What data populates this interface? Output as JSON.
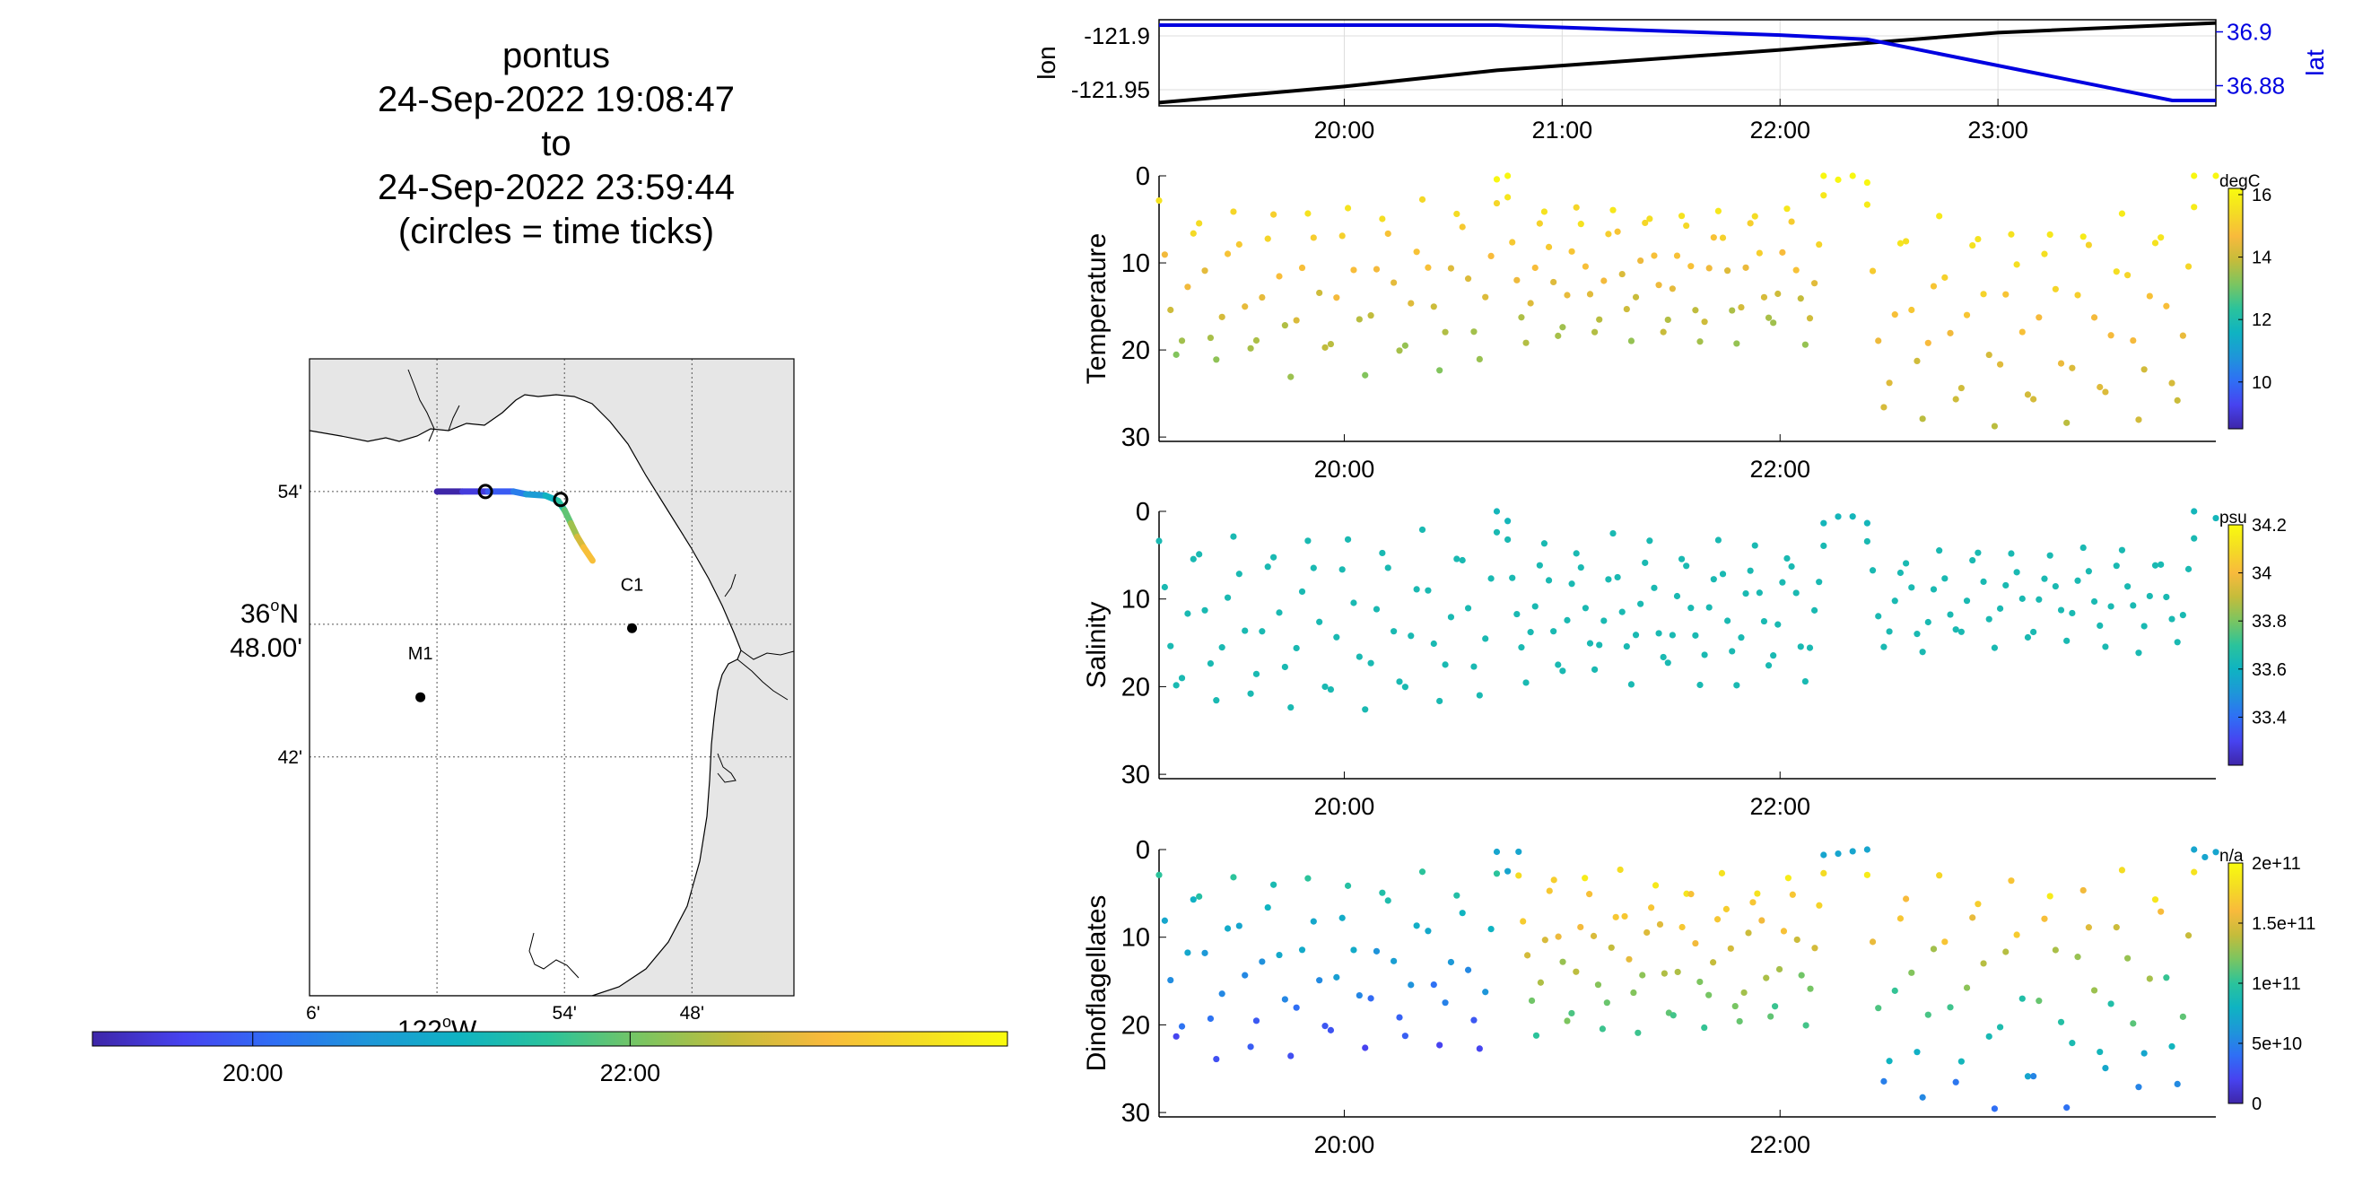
{
  "title": {
    "lines": [
      "pontus",
      "24-Sep-2022 19:08:47",
      "to",
      "24-Sep-2022 23:59:44",
      "(circles = time ticks)"
    ]
  },
  "colors": {
    "lon_line": "#000000",
    "lat_line": "#0000e0",
    "land": "#e6e6e6",
    "grid": "#bdbdbd",
    "parula_stops": [
      "#3e26a8",
      "#4743f0",
      "#2f6ff5",
      "#1e96d9",
      "#0fb3c2",
      "#2bc39b",
      "#7ac561",
      "#c4bc3b",
      "#f8ba3c",
      "#f4dc24",
      "#f9fb0e"
    ]
  },
  "chart_data": [
    {
      "type": "map",
      "name": "track-map",
      "x_ticks": [
        "6'",
        "54'",
        "48'"
      ],
      "x_tick_values": [
        -122.1,
        -121.9,
        -121.8
      ],
      "x_axis_label_deg": "122",
      "x_axis_label_suffix": "W",
      "y_ticks": [
        "54'",
        "42'"
      ],
      "y_tick_values": [
        36.9,
        36.7
      ],
      "y_axis_label_deg": "36",
      "y_axis_label_suffix": "N",
      "y_axis_label_min": "48.00'",
      "xlim": [
        -122.1,
        -121.72
      ],
      "ylim": [
        36.52,
        37.0
      ],
      "stations": [
        {
          "label": "C1",
          "lon": -121.847,
          "lat": 36.797
        },
        {
          "label": "M1",
          "lon": -122.013,
          "lat": 36.745
        }
      ],
      "track": {
        "lon": [
          -122.0,
          -121.98,
          -121.96,
          -121.94,
          -121.93,
          -121.915,
          -121.905,
          -121.9,
          -121.895,
          -121.89,
          -121.885,
          -121.878
        ],
        "lat": [
          36.9,
          36.9,
          36.9,
          36.9,
          36.898,
          36.897,
          36.893,
          36.886,
          36.876,
          36.866,
          36.858,
          36.848
        ],
        "time": [
          19.15,
          19.5,
          19.9,
          20.3,
          20.7,
          21.1,
          21.5,
          21.9,
          22.3,
          22.7,
          23.1,
          23.99
        ]
      },
      "time_ticks": [
        {
          "lon": -121.962,
          "lat": 36.9
        },
        {
          "lon": -121.903,
          "lat": 36.894
        }
      ]
    },
    {
      "type": "colorbar",
      "name": "time-colorbar",
      "range": [
        19.15,
        24.0
      ],
      "ticks": [
        20,
        22
      ],
      "tick_labels": [
        "20:00",
        "22:00"
      ]
    },
    {
      "type": "line",
      "name": "lon-lat-chart",
      "xlim": [
        19.15,
        24.0
      ],
      "x_ticks": [
        20,
        21,
        22,
        23
      ],
      "x_tick_labels": [
        "20:00",
        "21:00",
        "22:00",
        "23:00"
      ],
      "ylabel_left": "lon",
      "ylabel_right": "lat",
      "ylim_left": [
        -121.965,
        -121.885
      ],
      "y_ticks_left": [
        -121.9,
        -121.95
      ],
      "y_tick_labels_left": [
        "-121.9",
        "-121.95"
      ],
      "ylim_right": [
        36.8725,
        36.9045
      ],
      "y_ticks_right": [
        36.9,
        36.88
      ],
      "y_tick_labels_right": [
        "36.9",
        "36.88"
      ],
      "series": [
        {
          "axis": "left",
          "x": [
            19.15,
            20.0,
            20.7,
            22.0,
            23.0,
            24.0
          ],
          "y": [
            -121.962,
            -121.947,
            -121.932,
            -121.913,
            -121.897,
            -121.888
          ]
        },
        {
          "axis": "right",
          "x": [
            19.15,
            20.7,
            22.0,
            22.4,
            23.8,
            24.0
          ],
          "y": [
            36.9025,
            36.9025,
            36.8988,
            36.8972,
            36.8745,
            36.8745
          ]
        }
      ]
    },
    {
      "type": "scatter",
      "name": "temperature-chart",
      "ylabel": "Temperature",
      "unit_label": "degC",
      "xlim": [
        19.15,
        24.0
      ],
      "ylim": [
        0,
        30.5
      ],
      "y_ticks": [
        0,
        10,
        20,
        30
      ],
      "x_ticks": [
        20,
        22
      ],
      "x_tick_labels": [
        "20:00",
        "22:00"
      ],
      "color_range": [
        8.5,
        16.2
      ],
      "cbar_ticks": [
        10,
        12,
        14,
        16
      ],
      "cbar_tick_labels": [
        "10",
        "12",
        "14",
        "16"
      ],
      "profiles": [
        {
          "t0": 19.15,
          "t1": 20.7,
          "d_shallow": 2.5,
          "d_deep": 23.0,
          "n": 60,
          "v_shallow": 15.6,
          "v_deep": 13.2
        },
        {
          "t0": 20.7,
          "t1": 20.75,
          "d_shallow": 0.2,
          "d_deep": 0.5,
          "n": 2,
          "v_shallow": 16.1,
          "v_deep": 16.0
        },
        {
          "t0": 20.75,
          "t1": 22.2,
          "d_shallow": 3.0,
          "d_deep": 19.5,
          "n": 70,
          "v_shallow": 15.7,
          "v_deep": 13.4
        },
        {
          "t0": 22.2,
          "t1": 22.4,
          "d_shallow": 0.5,
          "d_deep": 2.0,
          "n": 4,
          "v_shallow": 16.1,
          "v_deep": 16.0
        },
        {
          "t0": 22.4,
          "t1": 23.9,
          "d_shallow": 4.0,
          "d_deep": 28.5,
          "n": 60,
          "v_shallow": 15.8,
          "v_deep": 13.8
        },
        {
          "t0": 23.9,
          "t1": 24.0,
          "d_shallow": 0.0,
          "d_deep": 0.3,
          "n": 2,
          "v_shallow": 16.1,
          "v_deep": 16.0
        }
      ]
    },
    {
      "type": "scatter",
      "name": "salinity-chart",
      "ylabel": "Salinity",
      "unit_label": "psu",
      "xlim": [
        19.15,
        24.0
      ],
      "ylim": [
        0,
        30.5
      ],
      "y_ticks": [
        0,
        10,
        20,
        30
      ],
      "x_ticks": [
        20,
        22
      ],
      "x_tick_labels": [
        "20:00",
        "22:00"
      ],
      "color_range": [
        33.2,
        34.2
      ],
      "cbar_ticks": [
        33.4,
        33.6,
        33.8,
        34,
        34.2
      ],
      "cbar_tick_labels": [
        "33.4",
        "33.6",
        "33.8",
        "34",
        "34.2"
      ],
      "profiles": [
        {
          "t0": 19.15,
          "t1": 20.7,
          "d_shallow": 2.5,
          "d_deep": 22.5,
          "n": 60,
          "v_shallow": 33.64,
          "v_deep": 33.64
        },
        {
          "t0": 20.7,
          "t1": 20.75,
          "d_shallow": 0.2,
          "d_deep": 0.5,
          "n": 2,
          "v_shallow": 33.62,
          "v_deep": 33.62
        },
        {
          "t0": 20.75,
          "t1": 22.2,
          "d_shallow": 3.0,
          "d_deep": 19.5,
          "n": 70,
          "v_shallow": 33.64,
          "v_deep": 33.64
        },
        {
          "t0": 22.2,
          "t1": 22.4,
          "d_shallow": 0.5,
          "d_deep": 2.0,
          "n": 4,
          "v_shallow": 33.62,
          "v_deep": 33.62
        },
        {
          "t0": 22.4,
          "t1": 23.9,
          "d_shallow": 4.0,
          "d_deep": 16.0,
          "n": 60,
          "v_shallow": 33.64,
          "v_deep": 33.64
        },
        {
          "t0": 23.9,
          "t1": 24.0,
          "d_shallow": 0.0,
          "d_deep": 0.3,
          "n": 2,
          "v_shallow": 33.62,
          "v_deep": 33.62
        }
      ]
    },
    {
      "type": "scatter",
      "name": "dinoflagellates-chart",
      "ylabel": "Dinoflagellates",
      "unit_label": "n/a",
      "xlim": [
        19.15,
        24.0
      ],
      "ylim": [
        0,
        30.5
      ],
      "y_ticks": [
        0,
        10,
        20,
        30
      ],
      "x_ticks": [
        20,
        22
      ],
      "x_tick_labels": [
        "20:00",
        "22:00"
      ],
      "color_range": [
        0,
        200000000000
      ],
      "cbar_ticks": [
        0,
        50000000000,
        100000000000,
        150000000000,
        200000000000
      ],
      "cbar_tick_labels": [
        "0",
        "5e+10",
        "1e+11",
        "1.5e+11",
        "2e+11"
      ],
      "profiles": [
        {
          "t0": 19.15,
          "t1": 20.7,
          "d_shallow": 2.5,
          "d_deep": 24.0,
          "n": 60,
          "v_shallow": 100000000000,
          "v_deep": 20000000000
        },
        {
          "t0": 20.7,
          "t1": 20.8,
          "d_shallow": 0.1,
          "d_deep": 1.5,
          "n": 3,
          "v_shallow": 70000000000,
          "v_deep": 70000000000
        },
        {
          "t0": 20.8,
          "t1": 22.2,
          "d_shallow": 2.5,
          "d_deep": 21.0,
          "n": 70,
          "v_shallow": 190000000000,
          "v_deep": 100000000000
        },
        {
          "t0": 22.2,
          "t1": 22.4,
          "d_shallow": 0.1,
          "d_deep": 0.5,
          "n": 4,
          "v_shallow": 70000000000,
          "v_deep": 70000000000
        },
        {
          "t0": 22.4,
          "t1": 23.9,
          "d_shallow": 2.5,
          "d_deep": 29.0,
          "n": 60,
          "v_shallow": 190000000000,
          "v_deep": 40000000000
        },
        {
          "t0": 23.9,
          "t1": 24.0,
          "d_shallow": 0.0,
          "d_deep": 0.2,
          "n": 3,
          "v_shallow": 70000000000,
          "v_deep": 70000000000
        }
      ]
    }
  ]
}
